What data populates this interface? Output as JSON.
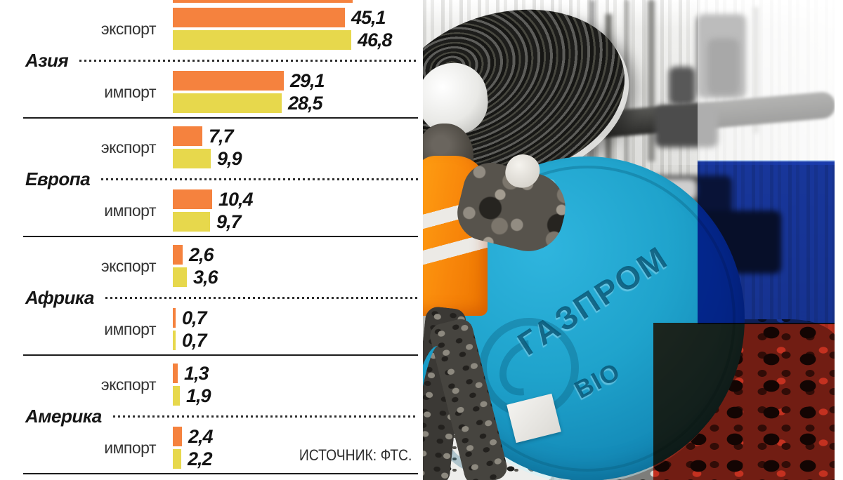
{
  "chart_data": {
    "type": "bar",
    "orientation": "horizontal",
    "grid": false,
    "legend_position": "none",
    "series_colors": {
      "orange": "#F5823E",
      "yellow": "#E7D84C"
    },
    "value_range": [
      0,
      46.8
    ],
    "sections": [
      {
        "region": "Азия",
        "pairs": [
          {
            "label": "экспорт",
            "bars": [
              {
                "series": "orange",
                "value": 45.1,
                "display": "45,1"
              },
              {
                "series": "yellow",
                "value": 46.8,
                "display": "46,8"
              }
            ]
          },
          {
            "label": "импорт",
            "bars": [
              {
                "series": "orange",
                "value": 29.1,
                "display": "29,1"
              },
              {
                "series": "yellow",
                "value": 28.5,
                "display": "28,5"
              }
            ]
          }
        ]
      },
      {
        "region": "Европа",
        "pairs": [
          {
            "label": "экспорт",
            "bars": [
              {
                "series": "orange",
                "value": 7.7,
                "display": "7,7"
              },
              {
                "series": "yellow",
                "value": 9.9,
                "display": "9,9"
              }
            ]
          },
          {
            "label": "импорт",
            "bars": [
              {
                "series": "orange",
                "value": 10.4,
                "display": "10,4"
              },
              {
                "series": "yellow",
                "value": 9.7,
                "display": "9,7"
              }
            ]
          }
        ]
      },
      {
        "region": "Африка",
        "pairs": [
          {
            "label": "экспорт",
            "bars": [
              {
                "series": "orange",
                "value": 2.6,
                "display": "2,6"
              },
              {
                "series": "yellow",
                "value": 3.6,
                "display": "3,6"
              }
            ]
          },
          {
            "label": "импорт",
            "bars": [
              {
                "series": "orange",
                "value": 0.7,
                "display": "0,7"
              },
              {
                "series": "yellow",
                "value": 0.7,
                "display": "0,7"
              }
            ]
          }
        ]
      },
      {
        "region": "Америка",
        "pairs": [
          {
            "label": "экспорт",
            "bars": [
              {
                "series": "orange",
                "value": 1.3,
                "display": "1,3"
              },
              {
                "series": "yellow",
                "value": 1.9,
                "display": "1,9"
              }
            ]
          },
          {
            "label": "импорт",
            "bars": [
              {
                "series": "orange",
                "value": 2.4,
                "display": "2,4"
              },
              {
                "series": "yellow",
                "value": 2.2,
                "display": "2,2"
              }
            ]
          }
        ]
      }
    ],
    "source": "ИСТОЧНИК: ФТС."
  },
  "photo": {
    "cap_text_line1": "ГАЗПРОМ",
    "cap_text_line2": "BIO",
    "cap_color": "#1FA3CC",
    "vest_color": "#F8860A",
    "flag_colors": {
      "white": "#FFFFFF",
      "blue": "#1B3EB4",
      "red": "#E73A26"
    }
  }
}
